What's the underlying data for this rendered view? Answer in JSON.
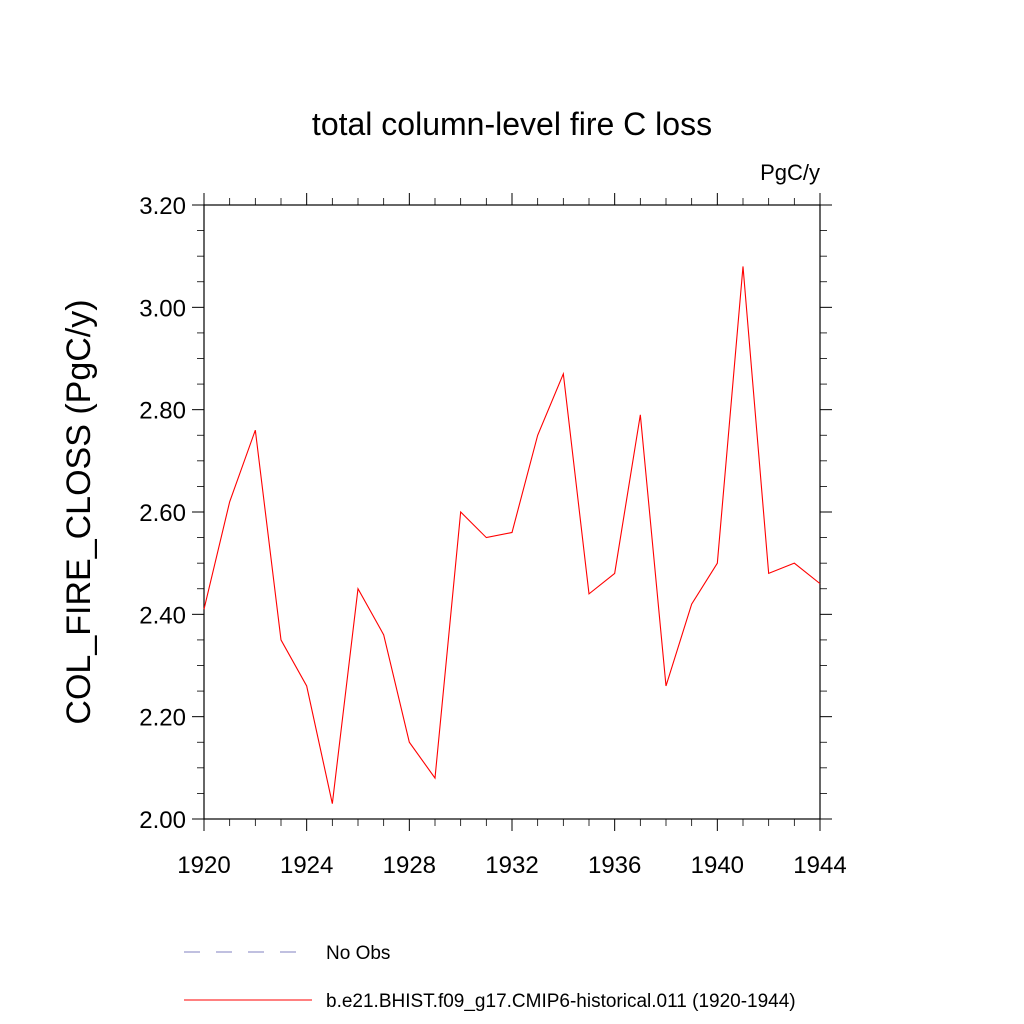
{
  "chart_data": {
    "type": "line",
    "title": "total column-level fire C loss",
    "units_label": "PgC/y",
    "ylabel": "COL_FIRE_CLOSS  (PgC/y)",
    "xlabel": "",
    "xlim": [
      1920,
      1944
    ],
    "ylim": [
      2.0,
      3.2
    ],
    "x_ticks": [
      1920,
      1924,
      1928,
      1932,
      1936,
      1940,
      1944
    ],
    "x_tick_labels": [
      "1920",
      "1924",
      "1928",
      "1932",
      "1936",
      "1940",
      "1944"
    ],
    "y_ticks": [
      2.0,
      2.2,
      2.4,
      2.6,
      2.8,
      3.0,
      3.2
    ],
    "y_tick_labels": [
      "2.00",
      "2.20",
      "2.40",
      "2.60",
      "2.80",
      "3.00",
      "3.20"
    ],
    "grid": false,
    "legend_position": "bottom",
    "series": [
      {
        "name": "b.e21.BHIST.f09_g17.CMIP6-historical.011 (1920-1944)",
        "color": "#ff0000",
        "style": "solid",
        "x": [
          1920,
          1921,
          1922,
          1923,
          1924,
          1925,
          1926,
          1927,
          1928,
          1929,
          1930,
          1931,
          1932,
          1933,
          1934,
          1935,
          1936,
          1937,
          1938,
          1939,
          1940,
          1941,
          1942,
          1943,
          1944
        ],
        "y": [
          2.41,
          2.62,
          2.76,
          2.35,
          2.26,
          2.03,
          2.45,
          2.36,
          2.15,
          2.08,
          2.6,
          2.55,
          2.56,
          2.75,
          2.87,
          2.44,
          2.48,
          2.79,
          2.26,
          2.42,
          2.5,
          3.08,
          2.48,
          2.5,
          2.46
        ]
      }
    ],
    "legend": [
      {
        "label": "No Obs",
        "color": "#8080c0",
        "style": "dashed"
      },
      {
        "label": "b.e21.BHIST.f09_g17.CMIP6-historical.011 (1920-1944)",
        "color": "#ff0000",
        "style": "solid"
      }
    ]
  }
}
